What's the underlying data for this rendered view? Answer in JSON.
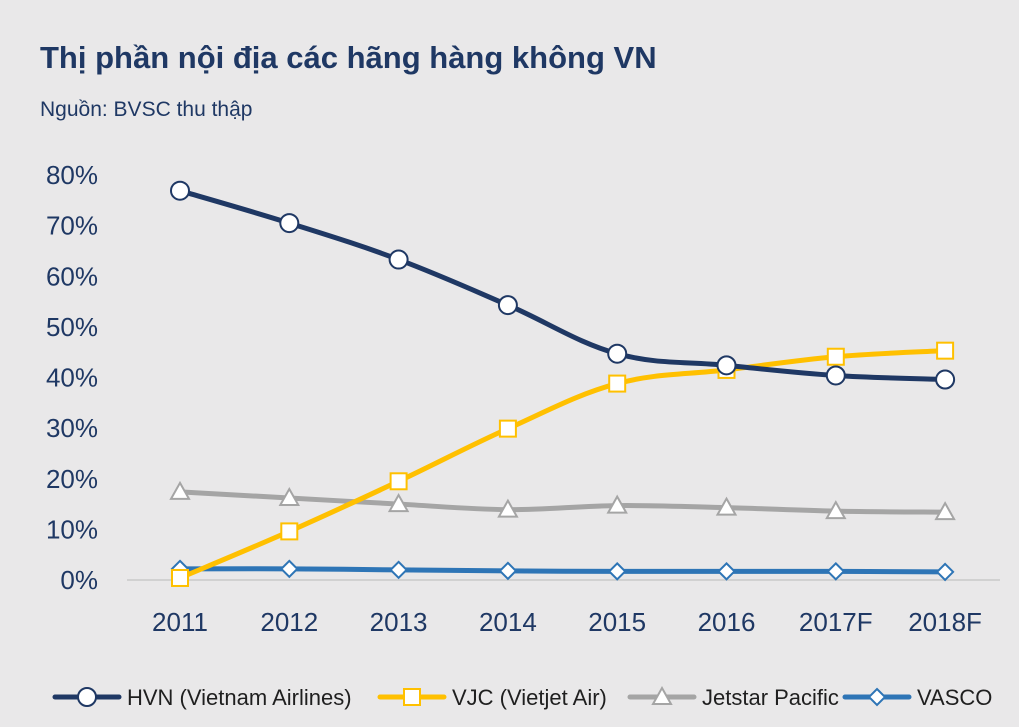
{
  "chart_data": {
    "type": "line",
    "title": "Thị phần nội địa các hãng hàng không VN",
    "subtitle": "Nguồn: BVSC thu thập",
    "xlabel": "",
    "ylabel": "",
    "categories": [
      "2011",
      "2012",
      "2013",
      "2014",
      "2015",
      "2016",
      "2017F",
      "2018F"
    ],
    "ylim": [
      0,
      80
    ],
    "yticks": [
      "0%",
      "10%",
      "20%",
      "30%",
      "40%",
      "50%",
      "60%",
      "70%",
      "80%"
    ],
    "grid": false,
    "legend_position": "bottom",
    "series": [
      {
        "name": "HVN (Vietnam Airlines)",
        "color": "#1f3864",
        "marker": "circle",
        "values": [
          76.9,
          70.5,
          63.3,
          54.3,
          44.7,
          42.4,
          40.4,
          39.6
        ]
      },
      {
        "name": "VJC (Vietjet Air)",
        "color": "#ffc000",
        "marker": "square",
        "values": [
          0.4,
          9.6,
          19.5,
          29.9,
          38.8,
          41.5,
          44.1,
          45.3
        ]
      },
      {
        "name": "Jetstar Pacific",
        "color": "#a5a5a5",
        "marker": "triangle",
        "values": [
          17.4,
          16.2,
          15.0,
          13.9,
          14.7,
          14.3,
          13.6,
          13.4
        ]
      },
      {
        "name": "VASCO",
        "color": "#2e75b6",
        "marker": "diamond",
        "values": [
          2.2,
          2.2,
          2.0,
          1.8,
          1.7,
          1.7,
          1.7,
          1.6
        ]
      }
    ]
  }
}
